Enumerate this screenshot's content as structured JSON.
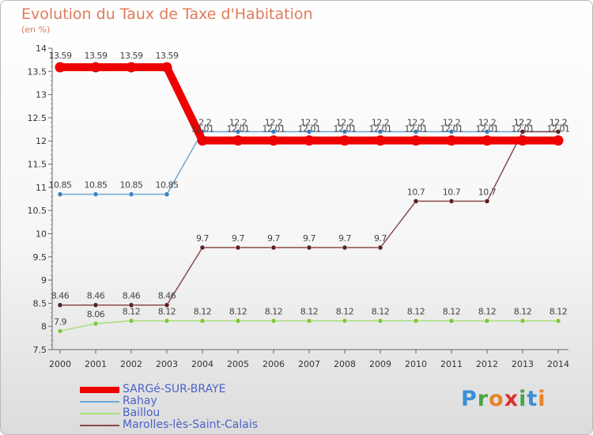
{
  "chart_title": "Evolution du Taux de Taxe d'Habitation",
  "unit_label": "(en %)",
  "logo": {
    "text": "Proxiti",
    "letters": [
      {
        "ch": "P",
        "color": "#3b8fd6"
      },
      {
        "ch": "r",
        "color": "#49a647"
      },
      {
        "ch": "o",
        "color": "#e8822a"
      },
      {
        "ch": "x",
        "color": "#d9322e"
      },
      {
        "ch": "i",
        "color": "#49a647"
      },
      {
        "ch": "t",
        "color": "#3b8fd6"
      },
      {
        "ch": "i",
        "color": "#e8822a"
      }
    ]
  },
  "chart_data": {
    "type": "line",
    "title": "Evolution du Taux de Taxe d'Habitation",
    "ylabel": "(en %)",
    "xlabel": "",
    "x": [
      "2000",
      "2001",
      "2002",
      "2003",
      "2004",
      "2005",
      "2006",
      "2007",
      "2008",
      "2009",
      "2010",
      "2011",
      "2012",
      "2013",
      "2014"
    ],
    "ylim": [
      7.5,
      14
    ],
    "yticks": [
      "7.5",
      "8",
      "8.5",
      "9",
      "9.5",
      "10",
      "10.5",
      "11",
      "11.5",
      "12",
      "12.5",
      "13",
      "13.5",
      "14"
    ],
    "grid": false,
    "legend_position": "bottom-left",
    "series": [
      {
        "name": "Rahay",
        "color": "#6fa8d6",
        "marker_color": "#3b82c4",
        "values": [
          10.85,
          10.85,
          10.85,
          10.85,
          12.2,
          12.2,
          12.2,
          12.2,
          12.2,
          12.2,
          12.2,
          12.2,
          12.2,
          12.2,
          12.2
        ],
        "labels": [
          "10.85",
          "10.85",
          "10.85",
          "10.85",
          "12.2",
          "12.2",
          "12.2",
          "12.2",
          "12.2",
          "12.2",
          "12.2",
          "12.2",
          "12.2",
          "12.2",
          "12.2"
        ]
      },
      {
        "name": "Baillou",
        "color": "#a6e07a",
        "marker_color": "#7cc63a",
        "values": [
          7.9,
          8.06,
          8.12,
          8.12,
          8.12,
          8.12,
          8.12,
          8.12,
          8.12,
          8.12,
          8.12,
          8.12,
          8.12,
          8.12,
          8.12
        ],
        "labels": [
          "7.9",
          "8.06",
          "8.12",
          "8.12",
          "8.12",
          "8.12",
          "8.12",
          "8.12",
          "8.12",
          "8.12",
          "8.12",
          "8.12",
          "8.12",
          "8.12",
          "8.12"
        ]
      },
      {
        "name": "Marolles-lès-Saint-Calais",
        "color": "#8a4a4a",
        "marker_color": "#5a1f1f",
        "values": [
          8.46,
          8.46,
          8.46,
          8.46,
          9.7,
          9.7,
          9.7,
          9.7,
          9.7,
          9.7,
          10.7,
          10.7,
          10.7,
          12.2,
          12.2
        ],
        "labels": [
          "8.46",
          "8.46",
          "8.46",
          "8.46",
          "9.7",
          "9.7",
          "9.7",
          "9.7",
          "9.7",
          "9.7",
          "10.7",
          "10.7",
          "10.7",
          "12.2",
          "12.2"
        ]
      },
      {
        "name": "SARGé-SUR-BRAYE",
        "color": "#ee0000",
        "marker_color": "#ee0000",
        "values": [
          13.59,
          13.59,
          13.59,
          13.59,
          12.01,
          12.01,
          12.01,
          12.01,
          12.01,
          12.01,
          12.01,
          12.01,
          12.01,
          12.01,
          12.01
        ],
        "labels": [
          "13.59",
          "13.59",
          "13.59",
          "13.59",
          "12.01",
          "12.01",
          "12.01",
          "12.01",
          "12.01",
          "12.01",
          "12.01",
          "12.01",
          "12.01",
          "12.01",
          "12.01"
        ]
      }
    ],
    "legend": [
      "SARGé-SUR-BRAYE",
      "Rahay",
      "Baillou",
      "Marolles-lès-Saint-Calais"
    ]
  }
}
